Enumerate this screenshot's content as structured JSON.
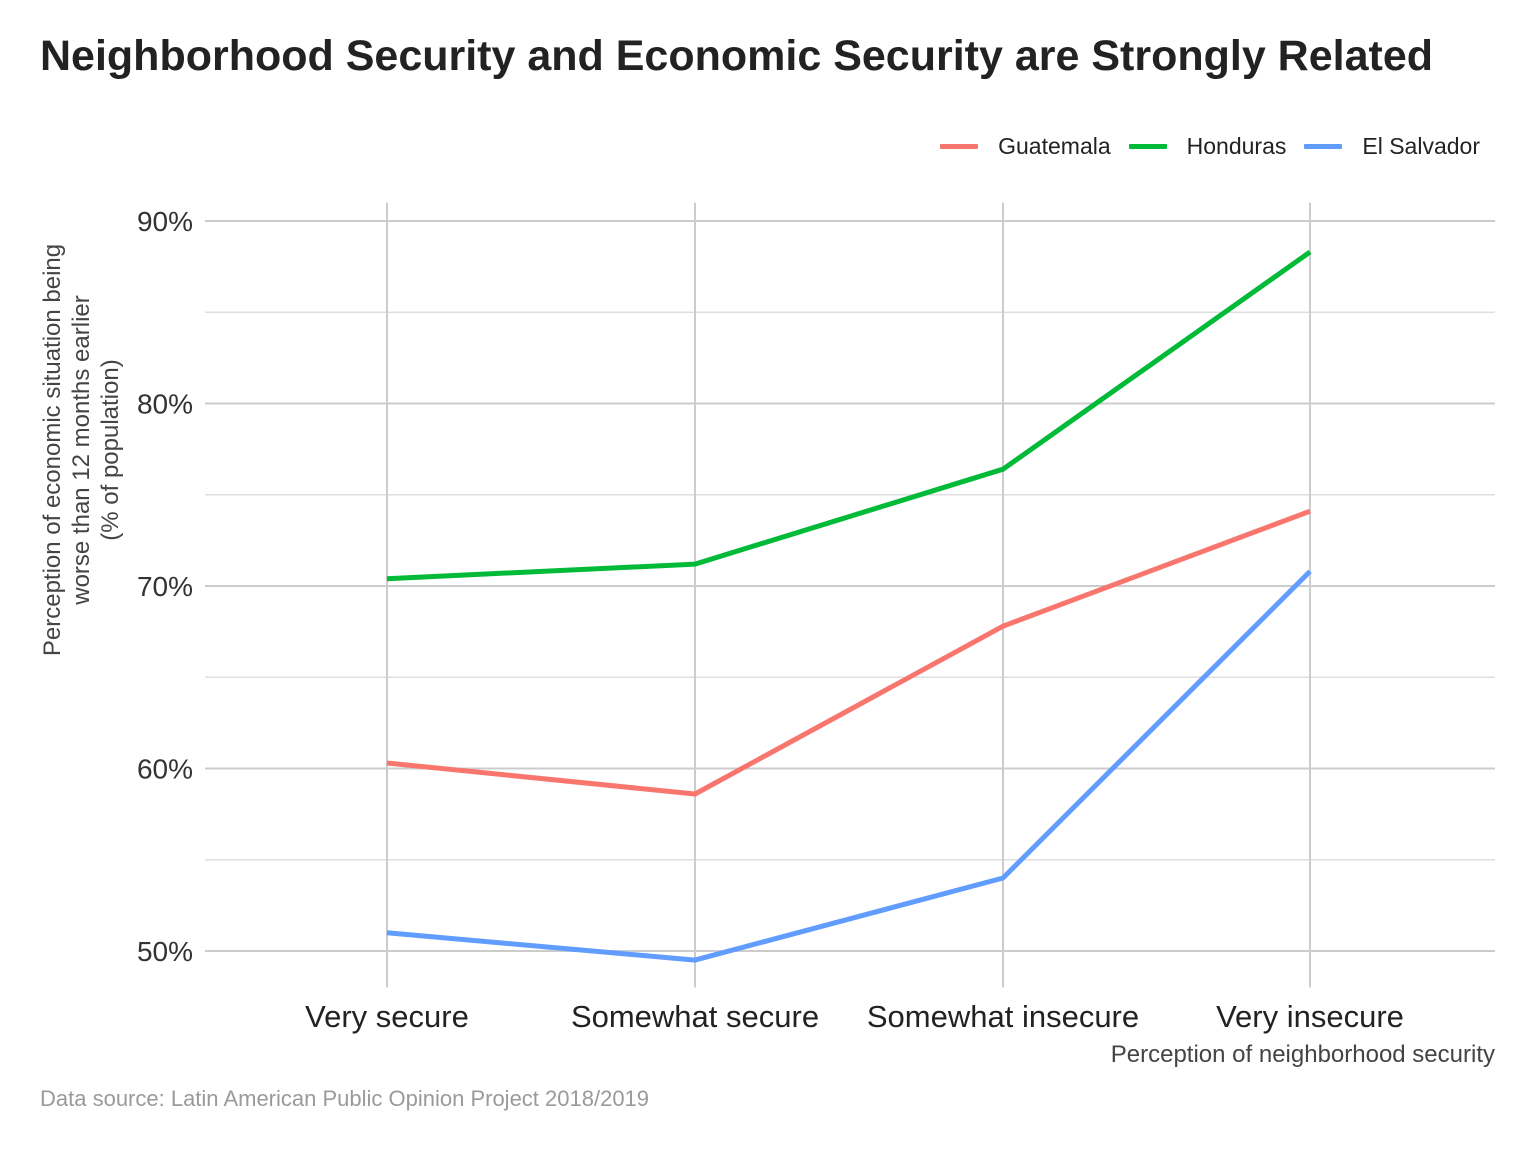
{
  "title": "Neighborhood Security and Economic Security are Strongly Related",
  "caption": "Data source: Latin American Public Opinion Project 2018/2019",
  "chart_data": {
    "type": "line",
    "title": "Neighborhood Security and Economic Security are Strongly Related",
    "categories": [
      "Very secure",
      "Somewhat secure",
      "Somewhat insecure",
      "Very insecure"
    ],
    "xlabel": "Perception of neighborhood security",
    "ylabel_lines": [
      "Perception of economic situation being",
      "worse than 12 months earlier",
      "(% of population)"
    ],
    "ylim": [
      48,
      91
    ],
    "yticks": [
      50,
      60,
      70,
      80,
      90
    ],
    "ytick_labels": [
      "50%",
      "60%",
      "70%",
      "80%",
      "90%"
    ],
    "grid": true,
    "legend_position": "top-right",
    "series": [
      {
        "name": "Guatemala",
        "color": "#F8766D",
        "values": [
          60.3,
          58.6,
          67.8,
          74.1
        ]
      },
      {
        "name": "Honduras",
        "color": "#00BA38",
        "values": [
          70.4,
          71.2,
          76.4,
          88.3
        ]
      },
      {
        "name": "El Salvador",
        "color": "#619CFF",
        "values": [
          51.0,
          49.5,
          54.0,
          70.8
        ]
      }
    ]
  }
}
